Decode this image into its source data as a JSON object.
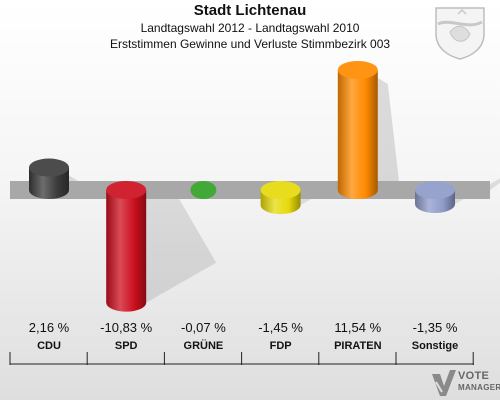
{
  "header": {
    "title": "Stadt Lichtenau",
    "subtitle1": "Landtagswahl 2012 - Landtagswahl 2010",
    "subtitle2": "Erststimmen Gewinne und Verluste Stimmbezirk 003"
  },
  "logo": {
    "line1": "VOTE",
    "line2": "MANAGER"
  },
  "chart_data": {
    "type": "bar",
    "title": "Landtagswahl 2012 - Landtagswahl 2010",
    "subtitle": "Erststimmen Gewinne und Verluste Stimmbezirk 003",
    "categories": [
      "CDU",
      "SPD",
      "GRÜNE",
      "FDP",
      "PIRATEN",
      "Sonstige"
    ],
    "values": [
      2.16,
      -10.83,
      -0.07,
      -1.45,
      11.54,
      -1.35
    ],
    "value_labels": [
      "2,16 %",
      "-10,83 %",
      "-0,07 %",
      "-1,45 %",
      "11,54 %",
      "-1,35 %"
    ],
    "colors": [
      "#3c3c3c",
      "#cc0f1e",
      "#42a838",
      "#e6d90a",
      "#ff8a00",
      "#8f9bc9"
    ],
    "ylim": [
      -11,
      12
    ],
    "xlabel": "",
    "ylabel": "",
    "grid": false,
    "legend": "none"
  }
}
